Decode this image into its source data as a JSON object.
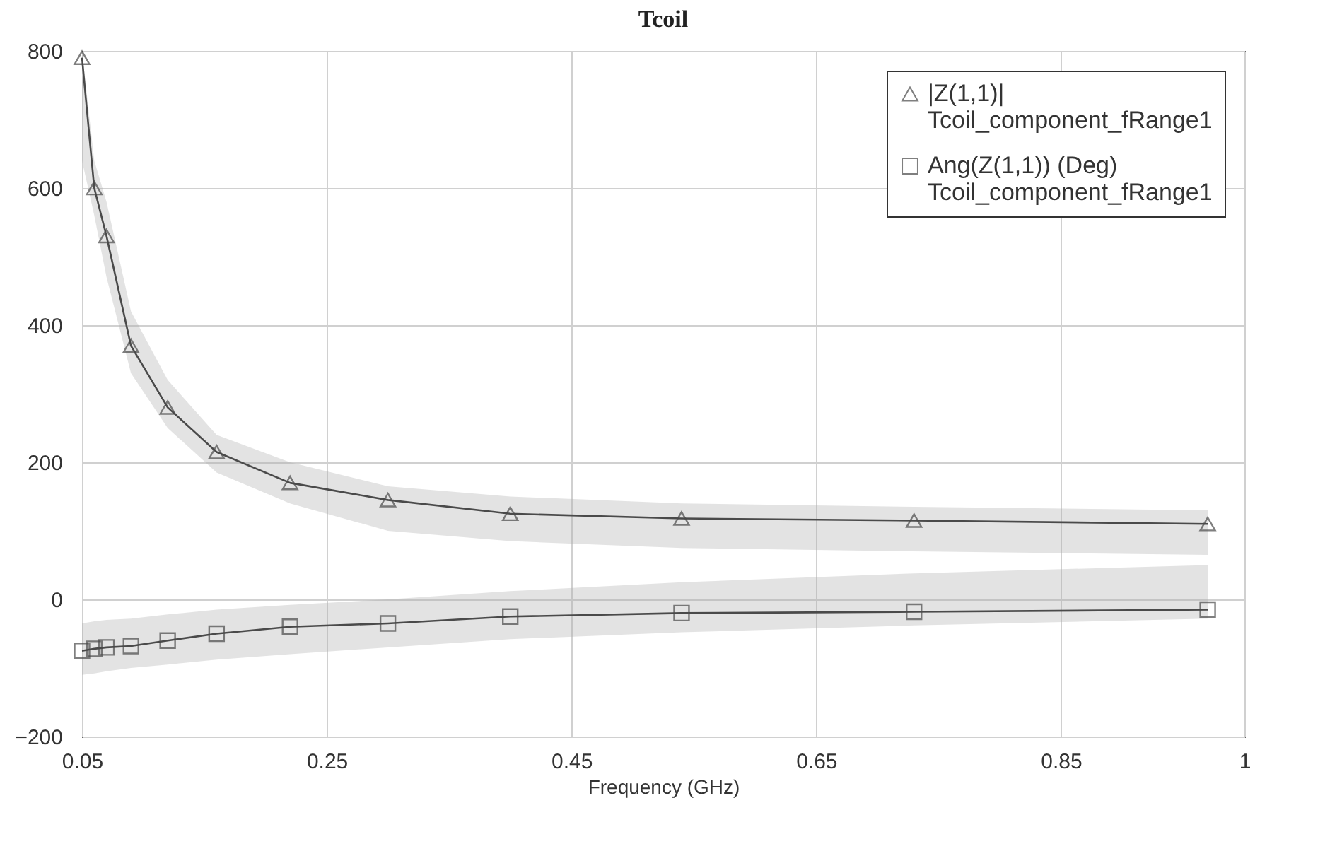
{
  "chart_data": {
    "type": "line",
    "title": "Tcoil",
    "xlabel": "Frequency (GHz)",
    "x": [
      0.05,
      0.06,
      0.07,
      0.09,
      0.12,
      0.16,
      0.22,
      0.3,
      0.4,
      0.54,
      0.73,
      0.97
    ],
    "series": [
      {
        "name": "|Z(1,1)|\nTcoil_component_fRange1",
        "color": "#4a4a4a",
        "marker": "triangle",
        "values": [
          790,
          600,
          530,
          370,
          280,
          215,
          170,
          145,
          125,
          118,
          115,
          110
        ],
        "lower": [
          640,
          560,
          470,
          330,
          250,
          185,
          140,
          100,
          85,
          75,
          70,
          65
        ],
        "upper": [
          800,
          640,
          580,
          420,
          320,
          240,
          200,
          165,
          150,
          140,
          135,
          130
        ]
      },
      {
        "name": "Ang(Z(1,1)) (Deg)\nTcoil_component_fRange1",
        "color": "#4a4a4a",
        "marker": "square",
        "values": [
          -75,
          -72,
          -70,
          -68,
          -60,
          -50,
          -40,
          -35,
          -25,
          -20,
          -18,
          -15
        ],
        "lower": [
          -110,
          -108,
          -105,
          -100,
          -95,
          -88,
          -80,
          -70,
          -58,
          -48,
          -38,
          -28
        ],
        "upper": [
          -35,
          -32,
          -30,
          -28,
          -22,
          -15,
          -8,
          0,
          12,
          25,
          38,
          50
        ]
      }
    ],
    "xlim": [
      0.05,
      1
    ],
    "xticks": [
      0.05,
      0.25,
      0.45,
      0.65,
      0.85,
      1
    ],
    "ylim": [
      -200,
      800
    ],
    "yticks": [
      -200,
      0,
      200,
      400,
      600,
      800
    ],
    "grid": true,
    "legend": "top right"
  }
}
